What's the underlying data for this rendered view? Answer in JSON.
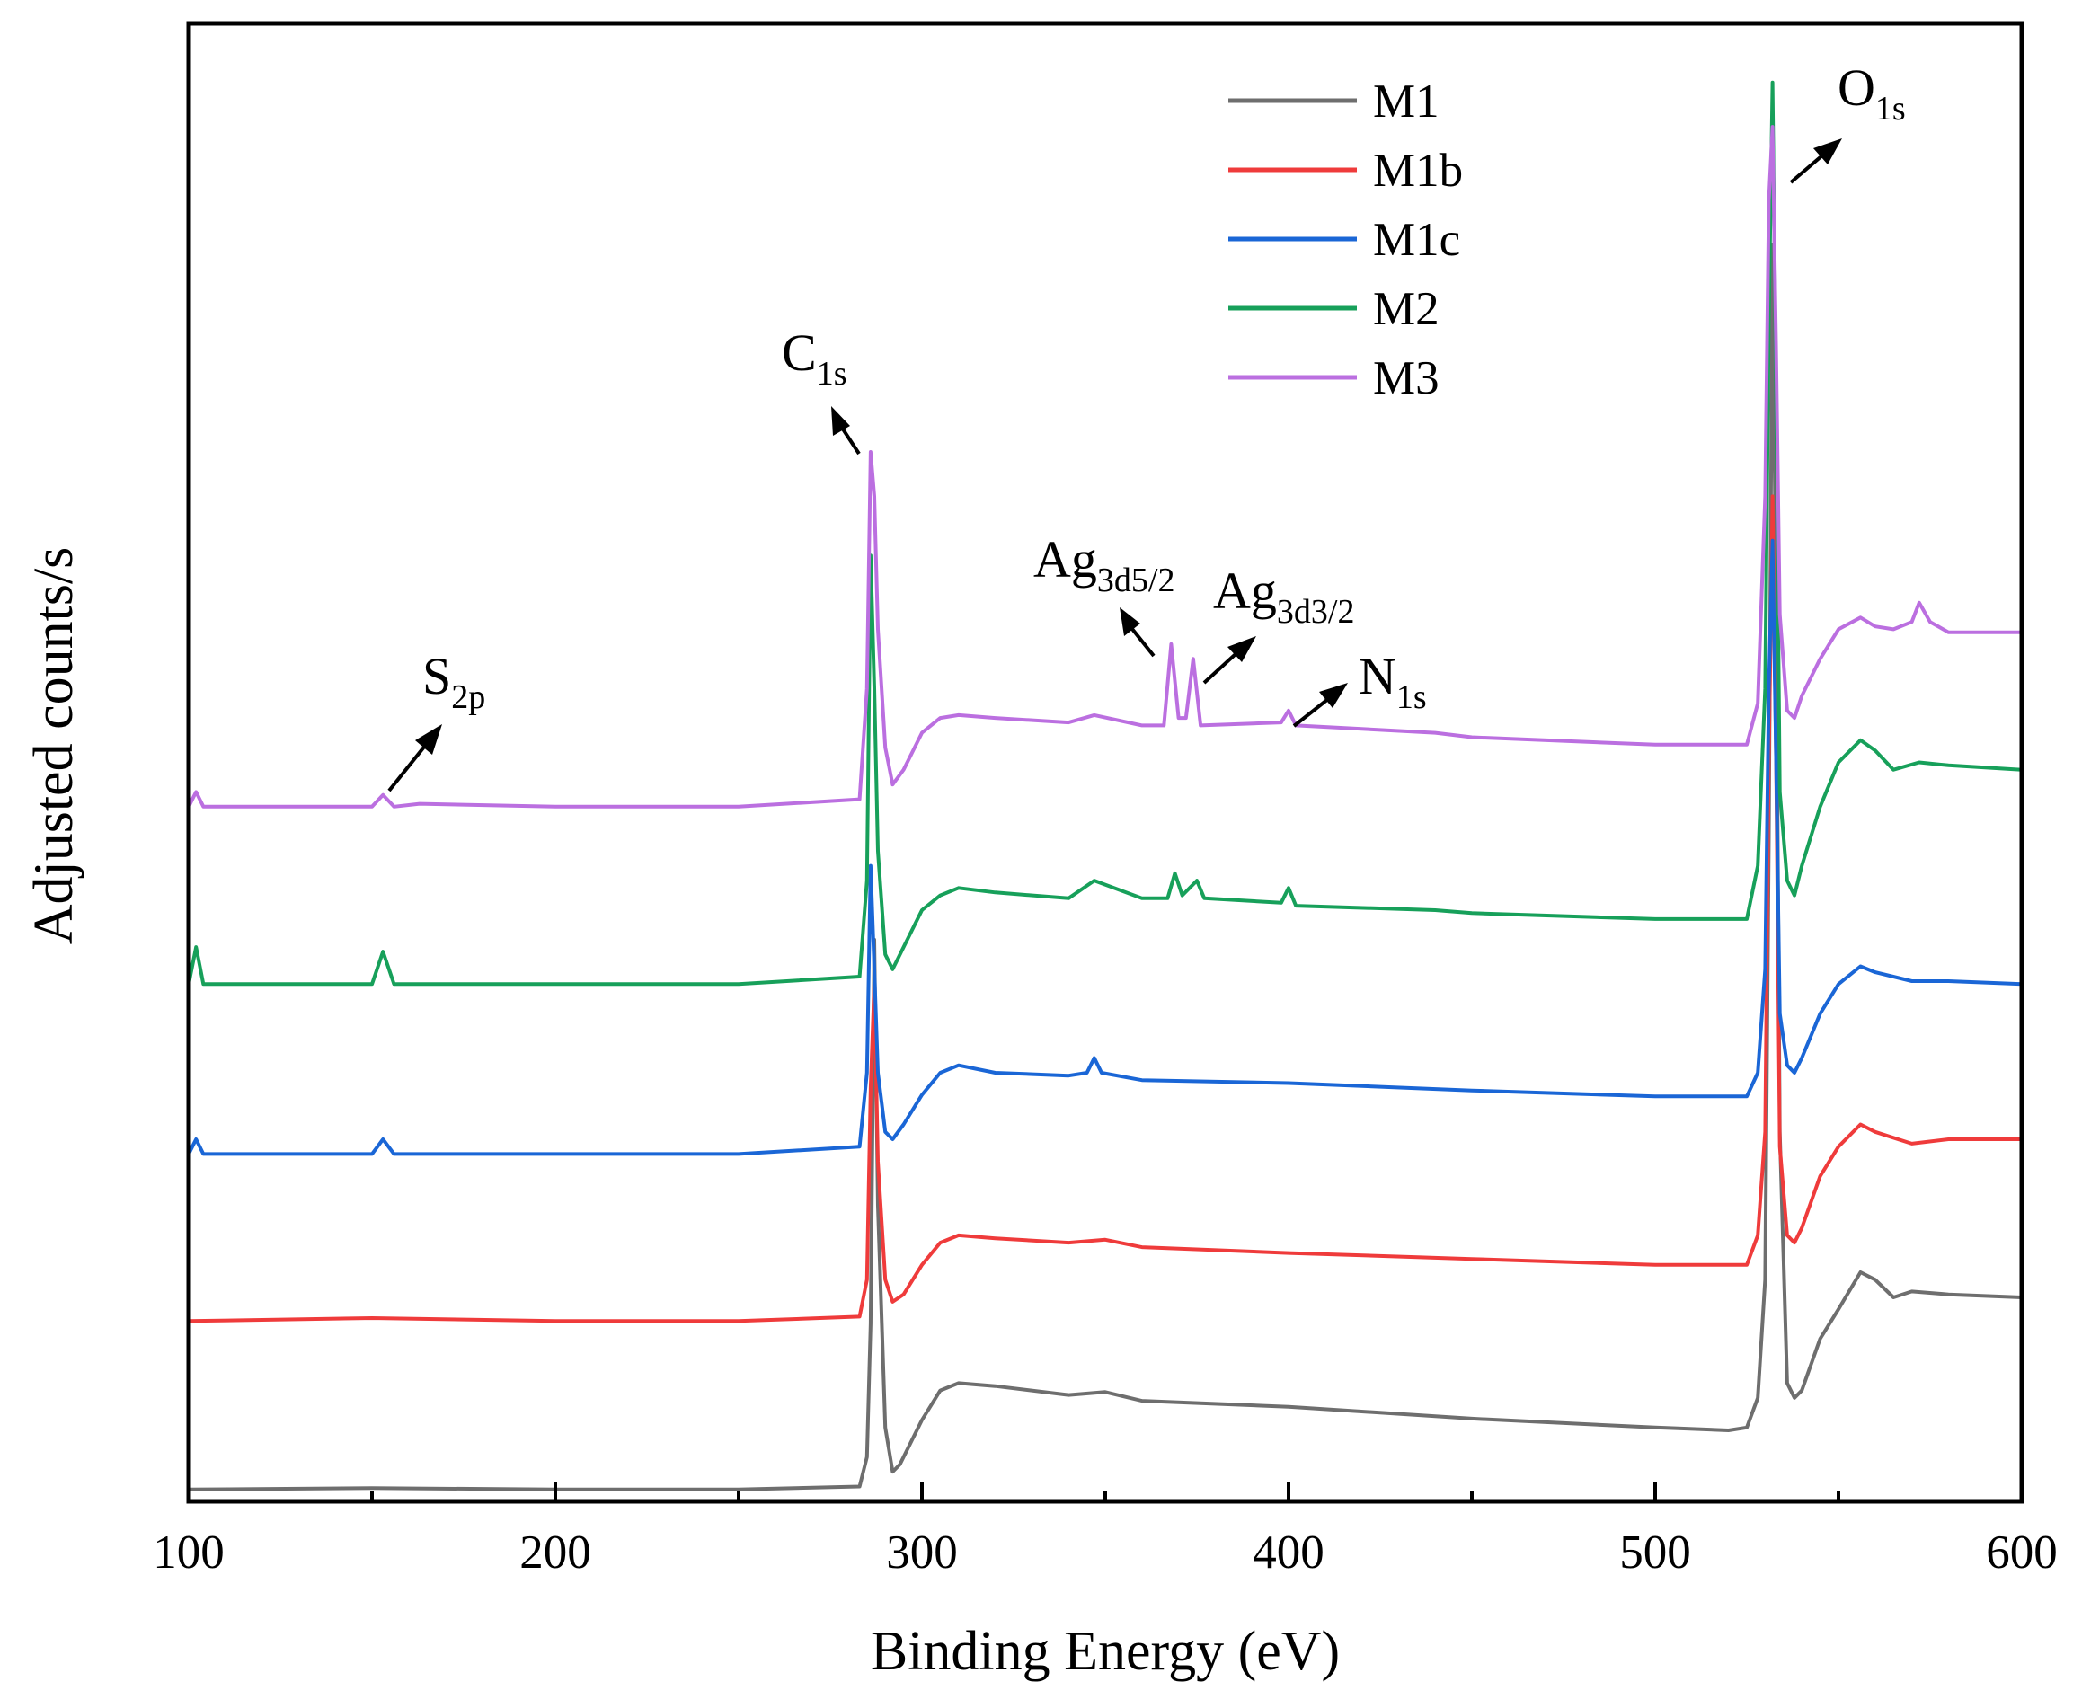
{
  "chart_data": {
    "type": "line",
    "title": "",
    "xlabel": "Binding Energy (eV)",
    "ylabel": "Adjusted counts/s",
    "xlim": [
      100,
      600
    ],
    "ylim": [
      0,
      10
    ],
    "y_ticks_shown": false,
    "x_ticks": [
      100,
      200,
      300,
      400,
      500,
      600
    ],
    "x_tick_labels": [
      "100",
      "200",
      "300",
      "400",
      "500",
      "600"
    ],
    "legend": {
      "position": "top-center",
      "entries": [
        "M1",
        "M1b",
        "M1c",
        "M2",
        "M3"
      ]
    },
    "series": [
      {
        "name": "M1",
        "color": "#6e6e6e",
        "points": [
          [
            100,
            0.08
          ],
          [
            150,
            0.09
          ],
          [
            200,
            0.08
          ],
          [
            250,
            0.08
          ],
          [
            283,
            0.1
          ],
          [
            285,
            0.3
          ],
          [
            286,
            1.2
          ],
          [
            287,
            3.8
          ],
          [
            288,
            2.0
          ],
          [
            290,
            0.5
          ],
          [
            292,
            0.2
          ],
          [
            294,
            0.25
          ],
          [
            300,
            0.55
          ],
          [
            305,
            0.75
          ],
          [
            310,
            0.8
          ],
          [
            320,
            0.78
          ],
          [
            340,
            0.72
          ],
          [
            350,
            0.74
          ],
          [
            360,
            0.68
          ],
          [
            400,
            0.64
          ],
          [
            450,
            0.56
          ],
          [
            500,
            0.5
          ],
          [
            520,
            0.48
          ],
          [
            525,
            0.5
          ],
          [
            528,
            0.7
          ],
          [
            530,
            1.5
          ],
          [
            531,
            4.5
          ],
          [
            532,
            8.5
          ],
          [
            533,
            6.0
          ],
          [
            534,
            2.5
          ],
          [
            536,
            0.8
          ],
          [
            538,
            0.7
          ],
          [
            540,
            0.75
          ],
          [
            545,
            1.1
          ],
          [
            550,
            1.3
          ],
          [
            556,
            1.55
          ],
          [
            560,
            1.5
          ],
          [
            565,
            1.38
          ],
          [
            570,
            1.42
          ],
          [
            580,
            1.4
          ],
          [
            600,
            1.38
          ]
        ]
      },
      {
        "name": "M1b",
        "color": "#ef3b3b",
        "points": [
          [
            100,
            1.22
          ],
          [
            150,
            1.24
          ],
          [
            200,
            1.22
          ],
          [
            250,
            1.22
          ],
          [
            283,
            1.25
          ],
          [
            285,
            1.5
          ],
          [
            286,
            2.8
          ],
          [
            287,
            3.5
          ],
          [
            288,
            2.3
          ],
          [
            290,
            1.5
          ],
          [
            292,
            1.35
          ],
          [
            295,
            1.4
          ],
          [
            300,
            1.6
          ],
          [
            305,
            1.75
          ],
          [
            310,
            1.8
          ],
          [
            320,
            1.78
          ],
          [
            340,
            1.75
          ],
          [
            350,
            1.77
          ],
          [
            360,
            1.72
          ],
          [
            400,
            1.68
          ],
          [
            450,
            1.64
          ],
          [
            500,
            1.6
          ],
          [
            525,
            1.6
          ],
          [
            528,
            1.8
          ],
          [
            530,
            2.5
          ],
          [
            531,
            5.0
          ],
          [
            532,
            6.8
          ],
          [
            533,
            5.0
          ],
          [
            534,
            2.4
          ],
          [
            536,
            1.8
          ],
          [
            538,
            1.75
          ],
          [
            540,
            1.85
          ],
          [
            545,
            2.2
          ],
          [
            550,
            2.4
          ],
          [
            556,
            2.55
          ],
          [
            560,
            2.5
          ],
          [
            570,
            2.42
          ],
          [
            580,
            2.45
          ],
          [
            600,
            2.45
          ]
        ]
      },
      {
        "name": "M1c",
        "color": "#1a66d6",
        "points": [
          [
            100,
            2.35
          ],
          [
            102,
            2.45
          ],
          [
            104,
            2.35
          ],
          [
            150,
            2.35
          ],
          [
            153,
            2.45
          ],
          [
            156,
            2.35
          ],
          [
            200,
            2.35
          ],
          [
            250,
            2.35
          ],
          [
            283,
            2.4
          ],
          [
            285,
            2.9
          ],
          [
            286,
            4.3
          ],
          [
            287,
            3.6
          ],
          [
            288,
            2.9
          ],
          [
            290,
            2.5
          ],
          [
            292,
            2.45
          ],
          [
            295,
            2.55
          ],
          [
            300,
            2.75
          ],
          [
            305,
            2.9
          ],
          [
            310,
            2.95
          ],
          [
            320,
            2.9
          ],
          [
            340,
            2.88
          ],
          [
            345,
            2.9
          ],
          [
            347,
            3.0
          ],
          [
            349,
            2.9
          ],
          [
            360,
            2.85
          ],
          [
            400,
            2.83
          ],
          [
            450,
            2.78
          ],
          [
            500,
            2.74
          ],
          [
            525,
            2.74
          ],
          [
            528,
            2.9
          ],
          [
            530,
            3.6
          ],
          [
            531,
            5.5
          ],
          [
            532,
            6.5
          ],
          [
            533,
            5.0
          ],
          [
            534,
            3.3
          ],
          [
            536,
            2.95
          ],
          [
            538,
            2.9
          ],
          [
            540,
            3.0
          ],
          [
            545,
            3.3
          ],
          [
            550,
            3.5
          ],
          [
            556,
            3.62
          ],
          [
            560,
            3.58
          ],
          [
            570,
            3.52
          ],
          [
            580,
            3.52
          ],
          [
            600,
            3.5
          ]
        ]
      },
      {
        "name": "M2",
        "color": "#17a05a",
        "points": [
          [
            100,
            3.5
          ],
          [
            102,
            3.75
          ],
          [
            104,
            3.5
          ],
          [
            150,
            3.5
          ],
          [
            153,
            3.72
          ],
          [
            156,
            3.5
          ],
          [
            200,
            3.5
          ],
          [
            250,
            3.5
          ],
          [
            283,
            3.55
          ],
          [
            285,
            4.2
          ],
          [
            286,
            6.4
          ],
          [
            287,
            5.5
          ],
          [
            288,
            4.4
          ],
          [
            290,
            3.7
          ],
          [
            292,
            3.6
          ],
          [
            295,
            3.75
          ],
          [
            300,
            4.0
          ],
          [
            305,
            4.1
          ],
          [
            310,
            4.15
          ],
          [
            320,
            4.12
          ],
          [
            340,
            4.08
          ],
          [
            347,
            4.2
          ],
          [
            360,
            4.08
          ],
          [
            367,
            4.08
          ],
          [
            369,
            4.25
          ],
          [
            371,
            4.1
          ],
          [
            375,
            4.2
          ],
          [
            377,
            4.08
          ],
          [
            398,
            4.05
          ],
          [
            400,
            4.15
          ],
          [
            402,
            4.03
          ],
          [
            440,
            4.0
          ],
          [
            450,
            3.98
          ],
          [
            500,
            3.94
          ],
          [
            525,
            3.94
          ],
          [
            528,
            4.3
          ],
          [
            530,
            5.5
          ],
          [
            531,
            8.0
          ],
          [
            532,
            9.6
          ],
          [
            533,
            7.5
          ],
          [
            534,
            4.8
          ],
          [
            536,
            4.2
          ],
          [
            538,
            4.1
          ],
          [
            540,
            4.3
          ],
          [
            545,
            4.7
          ],
          [
            550,
            5.0
          ],
          [
            556,
            5.15
          ],
          [
            560,
            5.08
          ],
          [
            565,
            4.95
          ],
          [
            572,
            5.0
          ],
          [
            580,
            4.98
          ],
          [
            600,
            4.95
          ]
        ]
      },
      {
        "name": "M3",
        "color": "#bb6fe0",
        "points": [
          [
            100,
            4.7
          ],
          [
            102,
            4.8
          ],
          [
            104,
            4.7
          ],
          [
            150,
            4.7
          ],
          [
            153,
            4.78
          ],
          [
            156,
            4.7
          ],
          [
            163,
            4.72
          ],
          [
            200,
            4.7
          ],
          [
            250,
            4.7
          ],
          [
            283,
            4.75
          ],
          [
            285,
            5.5
          ],
          [
            286,
            7.1
          ],
          [
            287,
            6.8
          ],
          [
            288,
            5.9
          ],
          [
            290,
            5.1
          ],
          [
            292,
            4.85
          ],
          [
            295,
            4.95
          ],
          [
            300,
            5.2
          ],
          [
            305,
            5.3
          ],
          [
            310,
            5.32
          ],
          [
            320,
            5.3
          ],
          [
            340,
            5.27
          ],
          [
            347,
            5.32
          ],
          [
            360,
            5.25
          ],
          [
            366,
            5.25
          ],
          [
            368,
            5.8
          ],
          [
            370,
            5.3
          ],
          [
            372,
            5.3
          ],
          [
            374,
            5.7
          ],
          [
            376,
            5.25
          ],
          [
            398,
            5.27
          ],
          [
            400,
            5.35
          ],
          [
            402,
            5.25
          ],
          [
            440,
            5.2
          ],
          [
            450,
            5.17
          ],
          [
            500,
            5.12
          ],
          [
            525,
            5.12
          ],
          [
            528,
            5.4
          ],
          [
            530,
            6.8
          ],
          [
            531,
            8.8
          ],
          [
            532,
            9.3
          ],
          [
            533,
            7.8
          ],
          [
            534,
            6.0
          ],
          [
            536,
            5.35
          ],
          [
            538,
            5.3
          ],
          [
            540,
            5.45
          ],
          [
            545,
            5.7
          ],
          [
            550,
            5.9
          ],
          [
            556,
            5.98
          ],
          [
            560,
            5.92
          ],
          [
            565,
            5.9
          ],
          [
            570,
            5.95
          ],
          [
            572,
            6.08
          ],
          [
            575,
            5.95
          ],
          [
            580,
            5.88
          ],
          [
            600,
            5.88
          ]
        ]
      }
    ],
    "annotations": [
      {
        "main": "S",
        "sub": "2p"
      },
      {
        "main": "C",
        "sub": "1s"
      },
      {
        "main": "Ag",
        "sub": "3d5/2"
      },
      {
        "main": "Ag",
        "sub": "3d3/2"
      },
      {
        "main": "N",
        "sub": "1s"
      },
      {
        "main": "O",
        "sub": "1s"
      }
    ]
  }
}
